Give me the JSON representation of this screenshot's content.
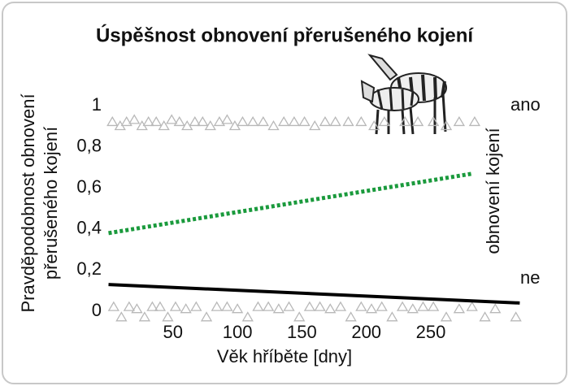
{
  "chart_data": {
    "type": "line",
    "title": "Úspěšnost obnovení přerušeného kojení",
    "ylabel": [
      "Pravděpodobnost obnovení",
      "přerušeného kojení"
    ],
    "xlabel": "Věk hříběte [dny]",
    "y2label": "obnovení kojení",
    "y2labels": [
      "ano",
      "ne"
    ],
    "xlim": [
      0,
      320
    ],
    "ylim": [
      0,
      1
    ],
    "xticks": [
      50,
      100,
      150,
      200,
      250
    ],
    "yticks": [
      0,
      {
        "value": 0.2,
        "label": "0,2"
      },
      {
        "value": 0.4,
        "label": "0,4"
      },
      {
        "value": 0.6,
        "label": "0,6"
      },
      {
        "value": 0.8,
        "label": "0,8"
      },
      1
    ],
    "grid": false,
    "series": [
      {
        "type": "scatter",
        "marker": "triangle",
        "color": "#b8b8b8",
        "x": [
          3,
          9,
          14,
          20,
          26,
          31,
          37,
          43,
          49,
          55,
          61,
          67,
          73,
          79,
          86,
          92,
          98,
          104,
          112,
          120,
          128,
          136,
          144,
          152,
          160,
          168,
          176,
          186,
          196,
          206,
          214,
          230,
          240,
          252,
          262,
          272,
          284
        ],
        "values": [
          0.92,
          0.9,
          0.92,
          0.93,
          0.9,
          0.92,
          0.92,
          0.9,
          0.93,
          0.92,
          0.9,
          0.92,
          0.92,
          0.9,
          0.92,
          0.93,
          0.9,
          0.92,
          0.92,
          0.92,
          0.9,
          0.92,
          0.92,
          0.92,
          0.9,
          0.92,
          0.92,
          0.92,
          0.92,
          0.9,
          0.92,
          0.92,
          0.92,
          0.92,
          0.9,
          0.92,
          0.92
        ]
      },
      {
        "type": "scatter",
        "marker": "triangle",
        "color": "#b8b8b8",
        "x": [
          4,
          10,
          16,
          22,
          28,
          34,
          40,
          46,
          52,
          60,
          68,
          76,
          84,
          92,
          100,
          108,
          116,
          124,
          132,
          140,
          148,
          156,
          164,
          172,
          180,
          188,
          196,
          204,
          212,
          220,
          228,
          236,
          244,
          252,
          262,
          272,
          282,
          292,
          300,
          316
        ],
        "values": [
          0.02,
          -0.03,
          0.02,
          0.01,
          -0.03,
          0.02,
          0.02,
          -0.03,
          0.02,
          0.01,
          0.02,
          -0.03,
          0.02,
          0.02,
          0.01,
          -0.03,
          0.02,
          0.02,
          0.01,
          0.02,
          -0.03,
          0.02,
          0.02,
          0.01,
          0.02,
          -0.03,
          0.02,
          0.01,
          0.02,
          -0.03,
          0.02,
          0.01,
          0.02,
          0.02,
          -0.03,
          0.01,
          0.02,
          -0.03,
          0.01,
          -0.03
        ]
      },
      {
        "type": "line",
        "style": "dotted",
        "color": "#1a9a3c",
        "x": [
          0,
          283
        ],
        "values": [
          0.38,
          0.67
        ]
      },
      {
        "type": "line",
        "style": "solid",
        "color": "#000000",
        "x": [
          0,
          319
        ],
        "values": [
          0.13,
          0.04
        ]
      }
    ]
  }
}
